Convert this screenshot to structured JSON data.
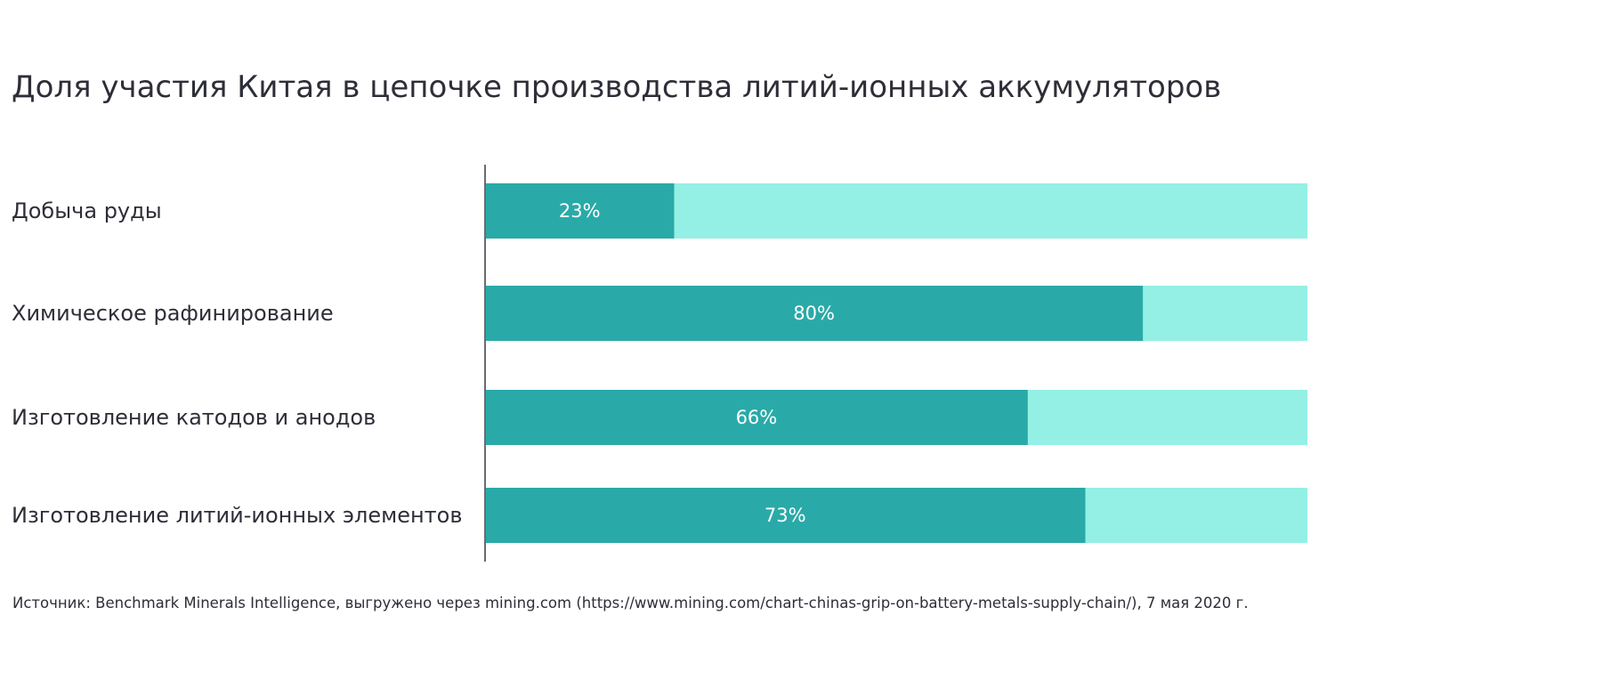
{
  "chart_data": {
    "type": "bar",
    "orientation": "horizontal",
    "stacked": true,
    "title": "Доля участия Китая в цепочке производства литий-ионных аккумуляторов",
    "categories": [
      "Добыча руды",
      "Химическое рафинирование",
      "Изготовление катодов и анодов",
      "Изготовление литий-ионных элементов"
    ],
    "values": [
      23,
      80,
      66,
      73
    ],
    "value_labels": [
      "23%",
      "80%",
      "66%",
      "73%"
    ],
    "xlim": [
      0,
      100
    ],
    "grid": false,
    "legend": "none",
    "colors": {
      "share": "#29aaa8",
      "remainder": "#94f0e4",
      "axis": "#6b6b73",
      "label_text": "#2e2e38",
      "value_text": "#ffffff"
    }
  },
  "source": "Источник: Benchmark Minerals Intelligence, выгружено через mining.com (https://www.mining.com/chart-chinas-grip-on-battery-metals-supply-chain/), 7 мая 2020 г."
}
